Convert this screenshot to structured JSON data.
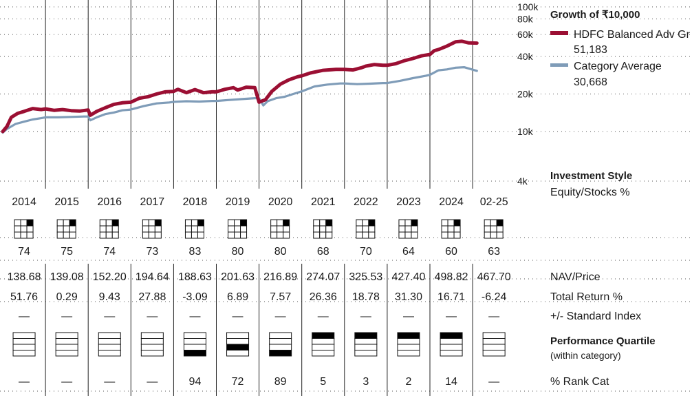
{
  "chart_data": {
    "type": "line",
    "title": "Growth of ₹10,000",
    "y_scale": "log",
    "y_ticks": [
      "100k",
      "80k",
      "60k",
      "40k",
      "20k",
      "10k",
      "4k"
    ],
    "y_tick_values": [
      100000,
      80000,
      60000,
      40000,
      20000,
      10000,
      4000
    ],
    "ylim": [
      4000,
      100000
    ],
    "grid": true,
    "legend_position": "right",
    "columns": [
      "2014",
      "2015",
      "2016",
      "2017",
      "2018",
      "2019",
      "2020",
      "2021",
      "2022",
      "2023",
      "2024",
      "02-25"
    ],
    "series": [
      {
        "name": "HDFC Balanced Adv Gr",
        "end_value": "51,183",
        "color": "#9b0f33",
        "x": [
          2014.0,
          2014.1,
          2014.2,
          2014.35,
          2014.5,
          2014.7,
          2014.9,
          2015.0,
          2015.2,
          2015.4,
          2015.6,
          2015.8,
          2016.0,
          2016.05,
          2016.2,
          2016.4,
          2016.6,
          2016.8,
          2017.0,
          2017.2,
          2017.4,
          2017.6,
          2017.8,
          2018.0,
          2018.1,
          2018.3,
          2018.5,
          2018.7,
          2018.9,
          2019.0,
          2019.2,
          2019.4,
          2019.5,
          2019.7,
          2019.9,
          2020.0,
          2020.15,
          2020.3,
          2020.5,
          2020.7,
          2020.9,
          2021.0,
          2021.2,
          2021.5,
          2021.8,
          2022.0,
          2022.2,
          2022.4,
          2022.5,
          2022.7,
          2022.9,
          2023.0,
          2023.2,
          2023.4,
          2023.6,
          2023.8,
          2024.0,
          2024.1,
          2024.2,
          2024.4,
          2024.6,
          2024.75,
          2024.9,
          2025.1
        ],
        "y": [
          10000,
          11000,
          13000,
          14000,
          14500,
          15300,
          15000,
          15200,
          14800,
          15000,
          14700,
          14600,
          14900,
          13500,
          14500,
          15500,
          16500,
          17000,
          17200,
          18500,
          19000,
          20000,
          20800,
          21000,
          21800,
          20500,
          21700,
          20500,
          20800,
          20800,
          21800,
          22500,
          21500,
          22700,
          22500,
          17200,
          18000,
          21000,
          24000,
          26000,
          27500,
          28000,
          29500,
          31000,
          31500,
          31500,
          31200,
          32500,
          33500,
          34500,
          34000,
          34000,
          35000,
          37000,
          38500,
          40500,
          41500,
          44500,
          45500,
          48500,
          52500,
          53000,
          51500,
          51183
        ]
      },
      {
        "name": "Category Average",
        "end_value": "30,668",
        "color": "#7f9cb8",
        "x": [
          2014.0,
          2014.1,
          2014.3,
          2014.5,
          2014.7,
          2014.9,
          2015.0,
          2015.3,
          2015.6,
          2015.9,
          2016.0,
          2016.05,
          2016.2,
          2016.4,
          2016.6,
          2016.8,
          2017.0,
          2017.3,
          2017.6,
          2017.9,
          2018.0,
          2018.3,
          2018.6,
          2018.9,
          2019.0,
          2019.3,
          2019.6,
          2019.9,
          2020.0,
          2020.1,
          2020.2,
          2020.4,
          2020.6,
          2020.8,
          2021.0,
          2021.3,
          2021.6,
          2021.9,
          2022.0,
          2022.3,
          2022.6,
          2022.9,
          2023.0,
          2023.3,
          2023.6,
          2023.9,
          2024.0,
          2024.2,
          2024.4,
          2024.6,
          2024.8,
          2025.1
        ],
        "y": [
          9800,
          10500,
          11500,
          12000,
          12500,
          12800,
          13000,
          13000,
          13100,
          13200,
          13200,
          12300,
          13000,
          13800,
          14200,
          14800,
          15000,
          16000,
          16800,
          17100,
          17300,
          17500,
          17400,
          17600,
          17600,
          17900,
          18200,
          18500,
          18500,
          16200,
          17500,
          18500,
          19000,
          20000,
          21000,
          23000,
          23800,
          24300,
          24300,
          24000,
          24200,
          24500,
          24500,
          25500,
          26800,
          28000,
          28500,
          31000,
          31500,
          32500,
          32800,
          30668
        ]
      }
    ]
  },
  "style_box": {
    "heading": "Investment Style",
    "subheading": "Equity/Stocks %",
    "cells": [
      1,
      1,
      1,
      1,
      1,
      1,
      1,
      1,
      1,
      1,
      1,
      1
    ],
    "values": [
      "74",
      "75",
      "74",
      "73",
      "83",
      "80",
      "80",
      "68",
      "70",
      "64",
      "60",
      "63"
    ]
  },
  "table": {
    "nav": {
      "label": "NAV/Price",
      "values": [
        "138.68",
        "139.08",
        "152.20",
        "194.64",
        "188.63",
        "201.63",
        "216.89",
        "274.07",
        "325.53",
        "427.40",
        "498.82",
        "467.70"
      ]
    },
    "total_return": {
      "label": "Total Return %",
      "values": [
        "51.76",
        "0.29",
        "9.43",
        "27.88",
        "-3.09",
        "6.89",
        "7.57",
        "26.36",
        "18.78",
        "31.30",
        "16.71",
        "-6.24"
      ]
    },
    "vs_index": {
      "label": "+/- Standard Index",
      "values": [
        "—",
        "—",
        "—",
        "—",
        "—",
        "—",
        "—",
        "—",
        "—",
        "—",
        "—",
        "—"
      ]
    },
    "quartile": {
      "label": "Performance Quartile",
      "sublabel": "(within category)",
      "values": [
        0,
        0,
        0,
        0,
        4,
        3,
        4,
        1,
        1,
        1,
        1,
        0
      ]
    },
    "rank": {
      "label": "% Rank Cat",
      "values": [
        "—",
        "—",
        "—",
        "—",
        "94",
        "72",
        "89",
        "5",
        "3",
        "2",
        "14",
        "—"
      ]
    }
  }
}
